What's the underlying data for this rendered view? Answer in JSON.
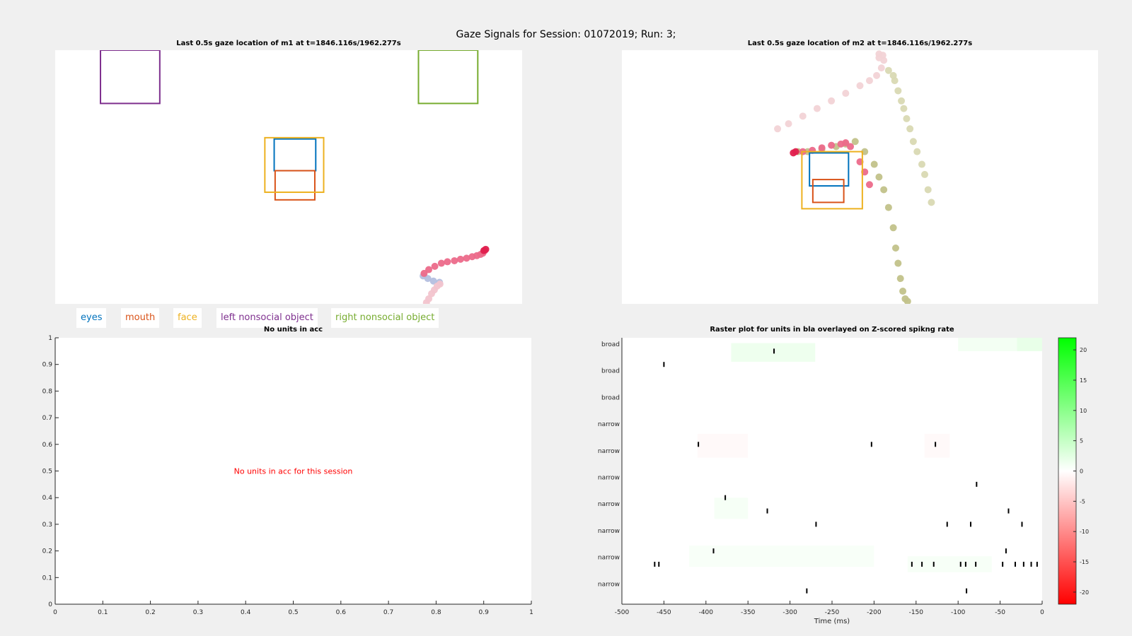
{
  "figure": {
    "title": "Gaze Signals for Session: 01072019; Run: 3;"
  },
  "gaze_m1": {
    "title": "Last 0.5s gaze location of m1 at t=1846.116s/1962.277s"
  },
  "gaze_m2": {
    "title": "Last 0.5s gaze location of m2 at t=1846.116s/1962.277s"
  },
  "legend": [
    {
      "label": "eyes",
      "color": "#0072bd"
    },
    {
      "label": "mouth",
      "color": "#d95319"
    },
    {
      "label": "face",
      "color": "#edb120"
    },
    {
      "label": "left nonsocial object",
      "color": "#7e2f8e"
    },
    {
      "label": "right nonsocial object",
      "color": "#77ac30"
    }
  ],
  "acc": {
    "title": "No units in acc",
    "message": "No units in acc for this session",
    "message_color": "#ff0000",
    "xticks": [
      "0",
      "0.1",
      "0.2",
      "0.3",
      "0.4",
      "0.5",
      "0.6",
      "0.7",
      "0.8",
      "0.9",
      "1"
    ],
    "yticks": [
      "0",
      "0.1",
      "0.2",
      "0.3",
      "0.4",
      "0.5",
      "0.6",
      "0.7",
      "0.8",
      "0.9",
      "1"
    ]
  },
  "chart_data": [
    {
      "type": "scatter",
      "title": "Last 0.5s gaze location of m1 at t=1846.116s/1962.277s",
      "regions": [
        {
          "name": "eyes",
          "color": "#0072bd",
          "x": [
            0.469,
            0.558
          ],
          "y": [
            0.525,
            0.65
          ]
        },
        {
          "name": "mouth",
          "color": "#d95319",
          "x": [
            0.471,
            0.556
          ],
          "y": [
            0.41,
            0.525
          ]
        },
        {
          "name": "face",
          "color": "#edb120",
          "x": [
            0.449,
            0.575
          ],
          "y": [
            0.44,
            0.655
          ]
        },
        {
          "name": "left nonsocial object",
          "color": "#7e2f8e",
          "x": [
            0.097,
            0.224
          ],
          "y": [
            0.79,
            1.0
          ]
        },
        {
          "name": "right nonsocial object",
          "color": "#77ac30",
          "x": [
            0.778,
            0.905
          ],
          "y": [
            0.79,
            1.0
          ]
        }
      ],
      "series": [
        {
          "color": "#b4bfdf",
          "x": [
            0.788,
            0.798,
            0.81,
            0.823
          ],
          "y": [
            0.11,
            0.1,
            0.09,
            0.085
          ]
        },
        {
          "color": "#f2c4cd",
          "x": [
            0.795,
            0.8,
            0.806,
            0.812,
            0.818,
            0.824
          ],
          "y": [
            0.005,
            0.02,
            0.04,
            0.055,
            0.07,
            0.078
          ]
        },
        {
          "color": "#ec6a8a",
          "x": [
            0.79,
            0.8,
            0.813,
            0.827,
            0.84,
            0.855,
            0.868,
            0.881,
            0.893,
            0.903,
            0.911,
            0.916,
            0.92
          ],
          "y": [
            0.12,
            0.135,
            0.148,
            0.16,
            0.166,
            0.17,
            0.176,
            0.18,
            0.186,
            0.19,
            0.195,
            0.2,
            0.21
          ]
        },
        {
          "color": "#e0204e",
          "x": [
            0.918,
            0.922
          ],
          "y": [
            0.21,
            0.215
          ]
        }
      ]
    },
    {
      "type": "scatter",
      "title": "Last 0.5s gaze location of m2 at t=1846.116s/1962.277s",
      "regions": [
        {
          "name": "eyes",
          "color": "#0072bd",
          "x": [
            0.394,
            0.476
          ],
          "y": [
            0.465,
            0.595
          ]
        },
        {
          "name": "mouth",
          "color": "#d95319",
          "x": [
            0.401,
            0.466
          ],
          "y": [
            0.4,
            0.49
          ]
        },
        {
          "name": "face",
          "color": "#edb120",
          "x": [
            0.378,
            0.505
          ],
          "y": [
            0.375,
            0.6
          ]
        }
      ],
      "series": [
        {
          "color": "#f2d3d6",
          "x": [
            0.327,
            0.35,
            0.38,
            0.41,
            0.44,
            0.47,
            0.5,
            0.52,
            0.535,
            0.545,
            0.55,
            0.548,
            0.54,
            0.54
          ],
          "y": [
            0.69,
            0.71,
            0.74,
            0.77,
            0.8,
            0.83,
            0.86,
            0.88,
            0.9,
            0.93,
            0.96,
            0.98,
            0.985,
            0.97
          ]
        },
        {
          "color": "#d9d9b3",
          "x": [
            0.56,
            0.57,
            0.573,
            0.58,
            0.587,
            0.592,
            0.598,
            0.605,
            0.612,
            0.62,
            0.63,
            0.636,
            0.643,
            0.65
          ],
          "y": [
            0.92,
            0.9,
            0.88,
            0.84,
            0.8,
            0.77,
            0.73,
            0.69,
            0.64,
            0.6,
            0.55,
            0.51,
            0.45,
            0.4
          ]
        },
        {
          "color": "#c2c28a",
          "x": [
            0.37,
            0.39,
            0.42,
            0.45,
            0.47,
            0.49,
            0.51,
            0.53,
            0.54,
            0.55,
            0.56,
            0.57,
            0.575,
            0.58,
            0.585,
            0.59,
            0.595,
            0.6
          ],
          "y": [
            0.6,
            0.6,
            0.61,
            0.62,
            0.63,
            0.64,
            0.6,
            0.55,
            0.5,
            0.45,
            0.38,
            0.3,
            0.22,
            0.16,
            0.1,
            0.05,
            0.02,
            0.01
          ]
        },
        {
          "color": "#ec6a8a",
          "x": [
            0.38,
            0.4,
            0.42,
            0.44,
            0.46,
            0.47,
            0.48,
            0.5,
            0.51,
            0.52
          ],
          "y": [
            0.6,
            0.605,
            0.615,
            0.625,
            0.63,
            0.635,
            0.62,
            0.56,
            0.52,
            0.47
          ]
        },
        {
          "color": "#e0204e",
          "x": [
            0.36,
            0.365
          ],
          "y": [
            0.595,
            0.6
          ]
        }
      ]
    },
    {
      "type": "scatter",
      "title": "Raster plot for units in bla overlayed on Z-scored spikng rate",
      "xlabel": "Time (ms)",
      "xlim": [
        -500,
        0
      ],
      "xticks": [
        "-500",
        "-450",
        "-400",
        "-350",
        "-300",
        "-250",
        "-200",
        "-150",
        "-100",
        "-50",
        "0"
      ],
      "unit_labels": [
        "broad",
        "broad",
        "broad",
        "narrow",
        "narrow",
        "narrow",
        "narrow",
        "narrow",
        "narrow",
        "narrow"
      ],
      "colorbar": {
        "range": [
          -22,
          22
        ],
        "ticks": [
          "20",
          "15",
          "10",
          "5",
          "0",
          "-5",
          "-10",
          "-15",
          "-20"
        ],
        "low_color": "#ff0000",
        "mid_color": "#ffffff",
        "high_color": "#00ff00"
      },
      "spikes": [
        {
          "row": 0.5,
          "t": -319
        },
        {
          "row": 1,
          "t": -450
        },
        {
          "row": 4,
          "t": -409
        },
        {
          "row": 4,
          "t": -203
        },
        {
          "row": 4,
          "t": -127
        },
        {
          "row": 5.5,
          "t": -78
        },
        {
          "row": 6,
          "t": -377
        },
        {
          "row": 6.5,
          "t": -327
        },
        {
          "row": 6.5,
          "t": -40
        },
        {
          "row": 7,
          "t": -269
        },
        {
          "row": 7,
          "t": -113
        },
        {
          "row": 7,
          "t": -85
        },
        {
          "row": 7,
          "t": -24
        },
        {
          "row": 8,
          "t": -391
        },
        {
          "row": 8,
          "t": -43
        },
        {
          "row": 8.5,
          "t": -461
        },
        {
          "row": 8.5,
          "t": -456
        },
        {
          "row": 8.5,
          "t": -155
        },
        {
          "row": 8.5,
          "t": -143
        },
        {
          "row": 8.5,
          "t": -129
        },
        {
          "row": 8.5,
          "t": -97
        },
        {
          "row": 8.5,
          "t": -91
        },
        {
          "row": 8.5,
          "t": -79
        },
        {
          "row": 8.5,
          "t": -47
        },
        {
          "row": 8.5,
          "t": -32
        },
        {
          "row": 8.5,
          "t": -22
        },
        {
          "row": 8.5,
          "t": -13
        },
        {
          "row": 8.5,
          "t": -6
        },
        {
          "row": 9.5,
          "t": -280
        },
        {
          "row": 9.5,
          "t": -90
        }
      ],
      "heat_patches": [
        {
          "t": [
            -370,
            -270
          ],
          "row": [
            0.2,
            0.9
          ],
          "z": 1.5
        },
        {
          "t": [
            -100,
            -30
          ],
          "row": [
            0.0,
            0.5
          ],
          "z": 1.0
        },
        {
          "t": [
            -30,
            0
          ],
          "row": [
            0.0,
            0.5
          ],
          "z": 2.0
        },
        {
          "t": [
            -410,
            -350
          ],
          "row": [
            3.6,
            4.5
          ],
          "z": -0.5
        },
        {
          "t": [
            -140,
            -110
          ],
          "row": [
            3.6,
            4.5
          ],
          "z": -0.5
        },
        {
          "t": [
            -390,
            -350
          ],
          "row": [
            6.0,
            6.8
          ],
          "z": 0.8
        },
        {
          "t": [
            -420,
            -200
          ],
          "row": [
            7.8,
            8.6
          ],
          "z": 0.6
        },
        {
          "t": [
            -160,
            -60
          ],
          "row": [
            8.2,
            8.8
          ],
          "z": 0.7
        }
      ]
    }
  ],
  "raster": {
    "title": "Raster plot for units in bla overlayed on Z-scored spikng rate",
    "xlabel": "Time (ms)"
  }
}
